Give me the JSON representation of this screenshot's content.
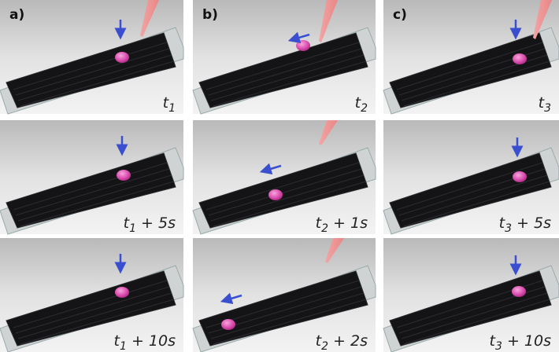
{
  "columns": [
    {
      "label": "a)",
      "panels": [
        {
          "var": "t",
          "sub": "1"
        },
        {
          "var": "t",
          "sub": "1",
          "rest": " + 5s"
        },
        {
          "var": "t",
          "sub": "1",
          "rest": " + 10s"
        }
      ]
    },
    {
      "label": "b)",
      "panels": [
        {
          "var": "t",
          "sub": "2"
        },
        {
          "var": "t",
          "sub": "2",
          "rest": " + 1s"
        },
        {
          "var": "t",
          "sub": "2",
          "rest": " + 2s"
        }
      ]
    },
    {
      "label": "c)",
      "panels": [
        {
          "var": "t",
          "sub": "3"
        },
        {
          "var": "t",
          "sub": "3",
          "rest": " + 5s"
        },
        {
          "var": "t",
          "sub": "3",
          "rest": " + 10s"
        }
      ]
    }
  ]
}
